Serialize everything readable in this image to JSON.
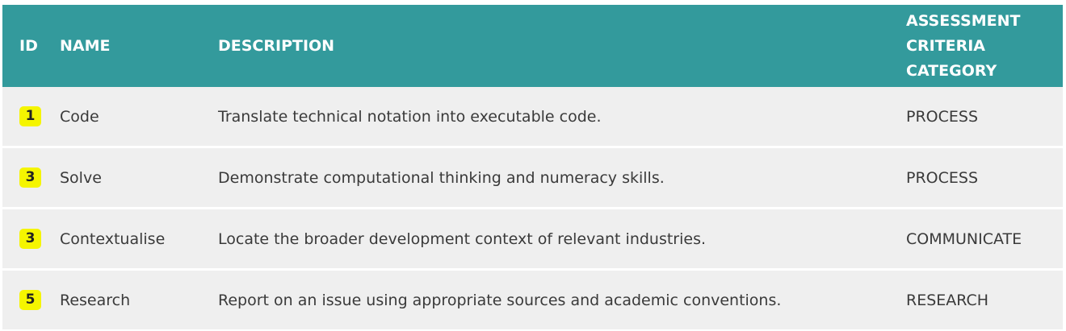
{
  "header": {
    "id": "ID",
    "name": "NAME",
    "description": "DESCRIPTION",
    "category_lines": [
      "ASSESSMENT",
      "CRITERIA",
      "CATEGORY"
    ]
  },
  "rows": [
    {
      "id": "1",
      "name": "Code",
      "description": "Translate technical notation into executable code.",
      "category": "PROCESS"
    },
    {
      "id": "3",
      "name": "Solve",
      "description": "Demonstrate computational thinking and numeracy skills.",
      "category": "PROCESS"
    },
    {
      "id": "3",
      "name": "Contextualise",
      "description": "Locate the broader development context of relevant industries.",
      "category": "COMMUNICATE"
    },
    {
      "id": "5",
      "name": "Research",
      "description": "Report on an issue using appropriate sources and academic conventions.",
      "category": "RESEARCH"
    }
  ],
  "colors": {
    "header_bg": "#339a9c",
    "row_bg": "#efefef",
    "badge_bg": "#f5f500"
  }
}
